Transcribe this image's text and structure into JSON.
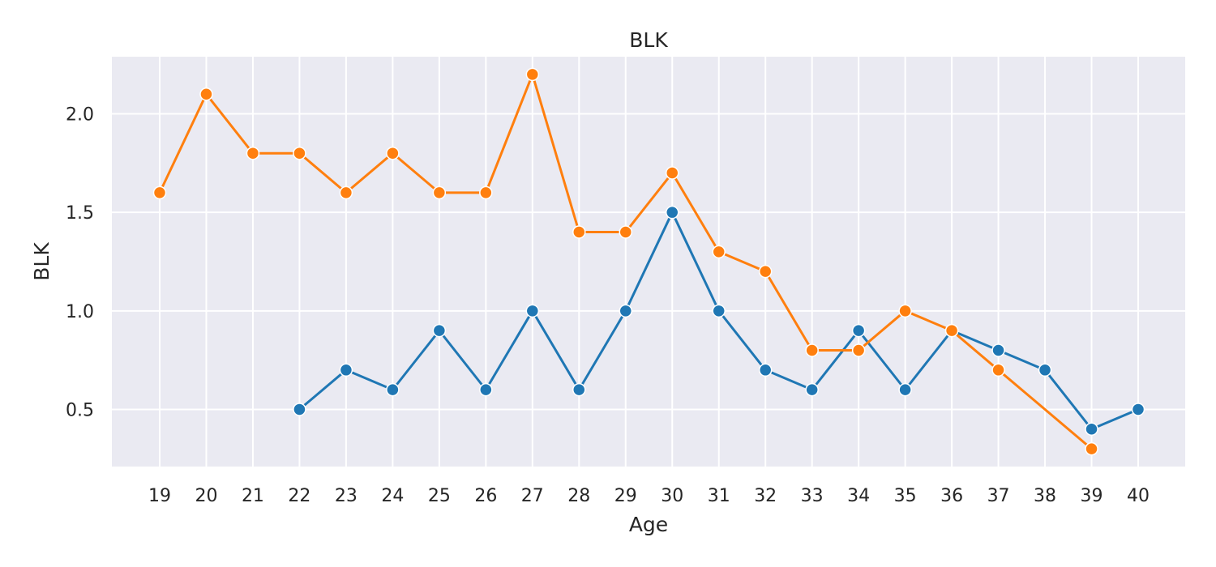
{
  "chart_data": {
    "type": "line",
    "title": "BLK",
    "xlabel": "Age",
    "ylabel": "BLK",
    "x": [
      19,
      20,
      21,
      22,
      23,
      24,
      25,
      26,
      27,
      28,
      29,
      30,
      31,
      32,
      33,
      34,
      35,
      36,
      37,
      38,
      39,
      40
    ],
    "x_tick_labels": [
      "19",
      "20",
      "21",
      "22",
      "23",
      "24",
      "25",
      "26",
      "27",
      "28",
      "29",
      "30",
      "31",
      "32",
      "33",
      "34",
      "35",
      "36",
      "37",
      "38",
      "39",
      "40"
    ],
    "y_ticks": [
      0.5,
      1.0,
      1.5,
      2.0
    ],
    "y_tick_labels": [
      "0.5",
      "1.0",
      "1.5",
      "2.0"
    ],
    "ylim": [
      0.21,
      2.29
    ],
    "grid": true,
    "legend": "none",
    "background": "#eaeaf2",
    "series": [
      {
        "color": "#1f77b4",
        "points": [
          [
            22,
            0.5
          ],
          [
            23,
            0.7
          ],
          [
            24,
            0.6
          ],
          [
            25,
            0.9
          ],
          [
            26,
            0.6
          ],
          [
            27,
            1.0
          ],
          [
            28,
            0.6
          ],
          [
            29,
            1.0
          ],
          [
            30,
            1.5
          ],
          [
            31,
            1.0
          ],
          [
            32,
            0.7
          ],
          [
            33,
            0.6
          ],
          [
            34,
            0.9
          ],
          [
            35,
            0.6
          ],
          [
            36,
            0.9
          ],
          [
            37,
            0.8
          ],
          [
            38,
            0.7
          ],
          [
            39,
            0.4
          ],
          [
            40,
            0.5
          ]
        ]
      },
      {
        "color": "#ff7f0e",
        "points": [
          [
            19,
            1.6
          ],
          [
            20,
            2.1
          ],
          [
            21,
            1.8
          ],
          [
            22,
            1.8
          ],
          [
            23,
            1.6
          ],
          [
            24,
            1.8
          ],
          [
            25,
            1.6
          ],
          [
            26,
            1.6
          ],
          [
            27,
            2.2
          ],
          [
            28,
            1.4
          ],
          [
            29,
            1.4
          ],
          [
            30,
            1.7
          ],
          [
            31,
            1.3
          ],
          [
            32,
            1.2
          ],
          [
            33,
            0.8
          ],
          [
            34,
            0.8
          ],
          [
            35,
            1.0
          ],
          [
            36,
            0.9
          ],
          [
            37,
            0.7
          ],
          [
            39,
            0.3
          ]
        ]
      }
    ]
  }
}
